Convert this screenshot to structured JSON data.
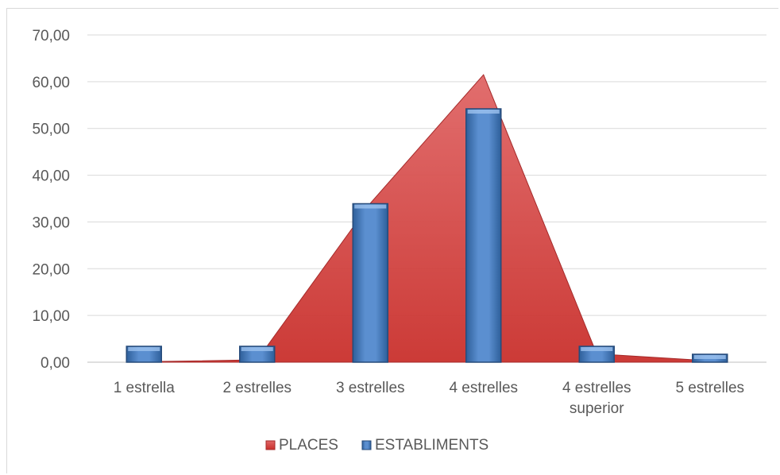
{
  "chart_data": {
    "type": "bar",
    "categories": [
      [
        "1 estrella"
      ],
      [
        "2 estrelles"
      ],
      [
        "3 estrelles"
      ],
      [
        "4 estrelles"
      ],
      [
        "4 estrelles",
        "superior"
      ],
      [
        "5 estrelles"
      ]
    ],
    "ylim": [
      0,
      70
    ],
    "yticks": [
      "0,00",
      "10,00",
      "20,00",
      "30,00",
      "40,00",
      "50,00",
      "60,00",
      "70,00"
    ],
    "grid": true,
    "legend_position": "bottom",
    "series": [
      {
        "name": "PLACES",
        "chart_type": "area",
        "color": "#c0504d",
        "values": [
          0.1,
          0.5,
          34.0,
          61.5,
          1.8,
          0.3
        ]
      },
      {
        "name": "ESTABLIMENTS",
        "chart_type": "bar",
        "color": "#4f81bd",
        "values": [
          3.4,
          3.4,
          33.9,
          54.2,
          3.4,
          1.7
        ]
      }
    ]
  }
}
